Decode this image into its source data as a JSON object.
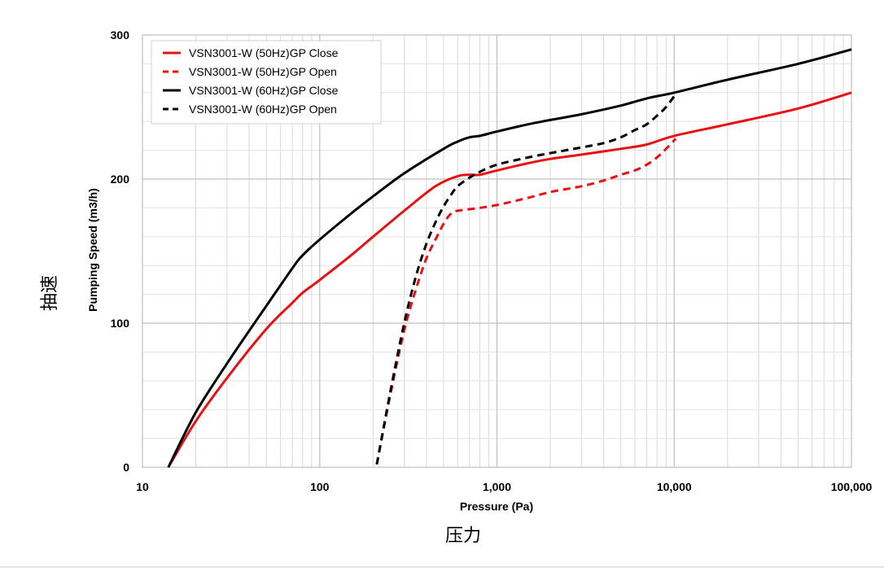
{
  "chart_data": {
    "type": "line",
    "title": "",
    "xlabel": "Pressure (Pa)",
    "ylabel": "Pumping Speed (m3/h)",
    "xlabel_cn": "压力",
    "ylabel_cn": "抽速",
    "xscale": "log",
    "xlim": [
      10,
      100000
    ],
    "ylim": [
      0,
      300
    ],
    "x_ticks": [
      10,
      100,
      1000,
      10000,
      100000
    ],
    "x_tick_labels": [
      "10",
      "100",
      "1,000",
      "10,000",
      "100,000"
    ],
    "y_ticks": [
      0,
      100,
      200,
      300
    ],
    "y_tick_labels": [
      "0",
      "100",
      "200",
      "300"
    ],
    "grid": true,
    "legend_position": "top-left",
    "series": [
      {
        "name": "VSN3001-W  (50Hz)GP Close",
        "color": "#e81010",
        "dash": false,
        "x": [
          14,
          20,
          30,
          50,
          70,
          80,
          100,
          150,
          200,
          300,
          450,
          600,
          700,
          800,
          1000,
          1500,
          2000,
          3000,
          5000,
          7000,
          10000,
          20000,
          50000,
          100000
        ],
        "y": [
          0,
          32,
          62,
          96,
          114,
          121,
          130,
          147,
          160,
          178,
          195,
          202,
          203,
          203,
          206,
          211,
          214,
          217,
          221,
          224,
          230,
          238,
          249,
          260
        ]
      },
      {
        "name": "VSN3001-W  (50Hz)GP Open",
        "color": "#e81010",
        "dash": true,
        "x": [
          210,
          250,
          300,
          350,
          400,
          450,
          500,
          550,
          600,
          800,
          1000,
          1500,
          2000,
          3000,
          4000,
          5000,
          6000,
          7000,
          8000,
          9000,
          10200
        ],
        "y": [
          2,
          50,
          95,
          124,
          145,
          158,
          169,
          176,
          178,
          180,
          182,
          187,
          191,
          195,
          199,
          203,
          206,
          210,
          215,
          221,
          228
        ]
      },
      {
        "name": "VSN3001-W  (60Hz)GP Close",
        "color": "#000000",
        "dash": false,
        "x": [
          14,
          20,
          30,
          50,
          70,
          80,
          100,
          150,
          200,
          300,
          500,
          600,
          700,
          800,
          1000,
          1500,
          2000,
          3000,
          5000,
          7000,
          10000,
          20000,
          50000,
          100000
        ],
        "y": [
          0,
          38,
          72,
          112,
          138,
          147,
          158,
          176,
          188,
          204,
          221,
          226,
          229,
          230,
          233,
          238,
          241,
          245,
          251,
          256,
          260,
          269,
          280,
          290
        ]
      },
      {
        "name": "VSN3001-W  (60Hz)GP Open",
        "color": "#000000",
        "dash": true,
        "x": [
          210,
          250,
          300,
          350,
          400,
          450,
          500,
          550,
          600,
          700,
          800,
          1000,
          1500,
          2000,
          3000,
          4000,
          5000,
          6000,
          7000,
          8000,
          9000,
          10200
        ],
        "y": [
          2,
          52,
          100,
          133,
          155,
          170,
          181,
          189,
          195,
          201,
          205,
          210,
          215,
          218,
          222,
          225,
          229,
          234,
          238,
          244,
          250,
          259
        ]
      }
    ]
  }
}
